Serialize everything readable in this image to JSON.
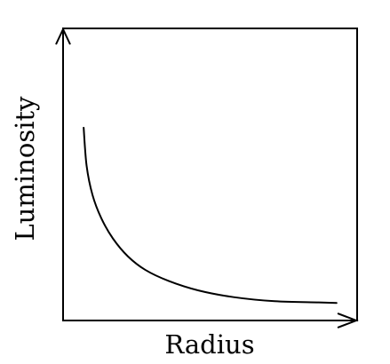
{
  "chart_data": {
    "type": "line",
    "title": "",
    "xlabel": "Radius",
    "ylabel": "Luminosity",
    "ticks": "none",
    "grid": false,
    "legend": "none",
    "xlim": [
      0,
      1
    ],
    "ylim": [
      0,
      1
    ],
    "series": [
      {
        "x": [
          0.07,
          0.08,
          0.1,
          0.13,
          0.17,
          0.22,
          0.28,
          0.36,
          0.46,
          0.58,
          0.72,
          0.87,
          0.93
        ],
        "values": [
          0.66,
          0.53,
          0.43,
          0.35,
          0.28,
          0.22,
          0.173,
          0.135,
          0.103,
          0.08,
          0.066,
          0.062,
          0.06
        ],
        "color": "#000000"
      }
    ]
  }
}
